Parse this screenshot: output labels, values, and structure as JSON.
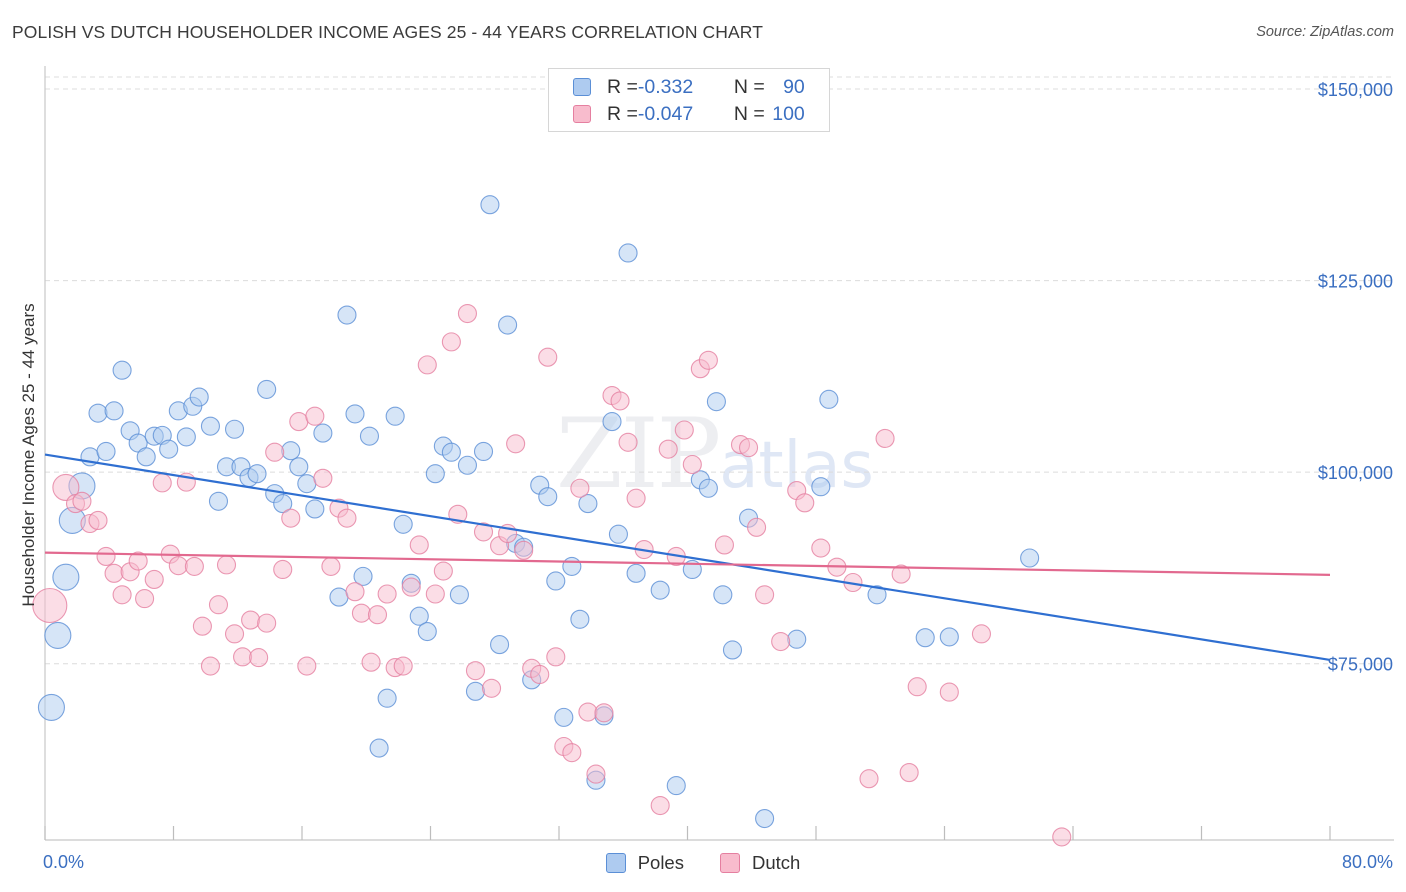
{
  "header": {
    "title": "POLISH VS DUTCH HOUSEHOLDER INCOME AGES 25 - 44 YEARS CORRELATION CHART",
    "source": "Source: ZipAtlas.com"
  },
  "legend": {
    "rows": [
      {
        "r_label": "R = ",
        "r_value": "-0.332",
        "n_label": "N = ",
        "n_value": "90"
      },
      {
        "r_label": "R = ",
        "r_value": "-0.047",
        "n_label": "N = ",
        "n_value": "100"
      }
    ]
  },
  "watermark": {
    "zip": "ZIP",
    "atlas": "atlas"
  },
  "colors": {
    "poles_fill": "#aecbf0",
    "poles_stroke": "#5b8fd6",
    "poles_line": "#2f6fd1",
    "dutch_fill": "#f8bccd",
    "dutch_stroke": "#e57fa0",
    "dutch_line": "#e2698f",
    "axis_label": "#3b6fc1",
    "grid": "#dcdcdc"
  },
  "chart_data": {
    "type": "scatter",
    "title": "POLISH VS DUTCH HOUSEHOLDER INCOME AGES 25 - 44 YEARS CORRELATION CHART",
    "xlabel": "",
    "ylabel": "Householder Income Ages 25 - 44 years",
    "xlim": [
      0,
      80
    ],
    "ylim": [
      52000,
      153000
    ],
    "x_tick_labels": [
      "0.0%",
      "80.0%"
    ],
    "y_ticks": [
      75000,
      100000,
      125000,
      150000
    ],
    "y_tick_labels": [
      "$75,000",
      "$100,000",
      "$125,000",
      "$150,000"
    ],
    "grid": true,
    "legend_position": "top-center",
    "series": [
      {
        "name": "Poles",
        "trend": {
          "x": [
            0,
            80
          ],
          "y": [
            102300,
            75500
          ]
        },
        "points": [
          [
            0.4,
            69300,
            "l"
          ],
          [
            0.8,
            78700,
            "l"
          ],
          [
            1.3,
            86300,
            "l"
          ],
          [
            1.7,
            93700,
            "l"
          ],
          [
            2.3,
            98200,
            "l"
          ],
          [
            2.8,
            102000
          ],
          [
            3.3,
            107700
          ],
          [
            3.8,
            102700
          ],
          [
            4.3,
            108000
          ],
          [
            4.8,
            113300
          ],
          [
            5.3,
            105400
          ],
          [
            5.8,
            103800
          ],
          [
            6.3,
            102000
          ],
          [
            6.8,
            104700
          ],
          [
            7.3,
            104800
          ],
          [
            7.7,
            103000
          ],
          [
            8.3,
            108000
          ],
          [
            8.8,
            104600
          ],
          [
            9.2,
            108600
          ],
          [
            9.6,
            109800
          ],
          [
            10.3,
            106000
          ],
          [
            10.8,
            96200
          ],
          [
            11.3,
            100700
          ],
          [
            11.8,
            105600
          ],
          [
            12.2,
            100700
          ],
          [
            12.7,
            99300
          ],
          [
            13.2,
            99800
          ],
          [
            13.8,
            110800
          ],
          [
            14.3,
            97200
          ],
          [
            14.8,
            95900
          ],
          [
            15.3,
            102800
          ],
          [
            15.8,
            100700
          ],
          [
            16.3,
            98500
          ],
          [
            16.8,
            95200
          ],
          [
            17.3,
            105100
          ],
          [
            18.3,
            83700
          ],
          [
            18.8,
            120500
          ],
          [
            19.3,
            107600
          ],
          [
            19.8,
            86400
          ],
          [
            20.2,
            104700
          ],
          [
            20.8,
            64000
          ],
          [
            21.3,
            70500
          ],
          [
            21.8,
            107300
          ],
          [
            22.3,
            93200
          ],
          [
            22.8,
            85500
          ],
          [
            23.3,
            81200
          ],
          [
            23.8,
            79200
          ],
          [
            24.3,
            99800
          ],
          [
            24.8,
            103400
          ],
          [
            25.3,
            102600
          ],
          [
            25.8,
            84000
          ],
          [
            26.3,
            100900
          ],
          [
            26.8,
            71400
          ],
          [
            27.3,
            102700
          ],
          [
            27.7,
            134900
          ],
          [
            28.3,
            77500
          ],
          [
            28.8,
            119200
          ],
          [
            29.3,
            90700
          ],
          [
            29.8,
            90200
          ],
          [
            30.3,
            72900
          ],
          [
            30.8,
            98300
          ],
          [
            31.3,
            96800
          ],
          [
            31.8,
            85800
          ],
          [
            32.3,
            68000
          ],
          [
            32.8,
            87700
          ],
          [
            33.3,
            80800
          ],
          [
            33.8,
            95900
          ],
          [
            34.3,
            59800
          ],
          [
            34.8,
            68200
          ],
          [
            35.3,
            106600
          ],
          [
            35.7,
            91900
          ],
          [
            36.3,
            128600
          ],
          [
            36.8,
            86800
          ],
          [
            38.3,
            84600
          ],
          [
            39.3,
            59100
          ],
          [
            40.3,
            87300
          ],
          [
            40.8,
            99000
          ],
          [
            41.3,
            97900
          ],
          [
            41.8,
            109200
          ],
          [
            42.2,
            84000
          ],
          [
            42.8,
            76800
          ],
          [
            43.8,
            94000
          ],
          [
            44.8,
            54800
          ],
          [
            48.3,
            98100
          ],
          [
            48.8,
            109500
          ],
          [
            51.8,
            84000
          ],
          [
            54.8,
            78400
          ],
          [
            56.3,
            78500
          ],
          [
            61.3,
            88800
          ],
          [
            46.8,
            78200
          ]
        ]
      },
      {
        "name": "Dutch",
        "trend": {
          "x": [
            0,
            80
          ],
          "y": [
            89500,
            86600
          ]
        },
        "points": [
          [
            0.3,
            82600,
            "xl"
          ],
          [
            1.3,
            98000,
            "l"
          ],
          [
            1.9,
            95900
          ],
          [
            2.3,
            96200
          ],
          [
            2.8,
            93300
          ],
          [
            3.3,
            93700
          ],
          [
            3.8,
            89000
          ],
          [
            4.3,
            86800
          ],
          [
            4.8,
            84000
          ],
          [
            5.3,
            87000
          ],
          [
            5.8,
            88400
          ],
          [
            6.2,
            83500
          ],
          [
            6.8,
            86000
          ],
          [
            7.3,
            98600
          ],
          [
            7.8,
            89300
          ],
          [
            8.3,
            87800
          ],
          [
            8.8,
            98700
          ],
          [
            9.3,
            87700
          ],
          [
            9.8,
            79900
          ],
          [
            10.3,
            74700
          ],
          [
            10.8,
            82700
          ],
          [
            11.3,
            87900
          ],
          [
            11.8,
            78900
          ],
          [
            12.3,
            75900
          ],
          [
            12.8,
            80700
          ],
          [
            13.3,
            75800
          ],
          [
            13.8,
            80300
          ],
          [
            14.3,
            102600
          ],
          [
            14.8,
            87300
          ],
          [
            15.3,
            94000
          ],
          [
            15.8,
            106600
          ],
          [
            16.3,
            74700
          ],
          [
            16.8,
            107300
          ],
          [
            17.3,
            99200
          ],
          [
            17.8,
            87700
          ],
          [
            18.3,
            95300
          ],
          [
            18.8,
            94000
          ],
          [
            19.3,
            84400
          ],
          [
            19.7,
            81600
          ],
          [
            20.3,
            75200
          ],
          [
            20.7,
            81400
          ],
          [
            21.3,
            84100
          ],
          [
            21.8,
            74500
          ],
          [
            22.3,
            74700
          ],
          [
            22.8,
            85000
          ],
          [
            23.3,
            90500
          ],
          [
            23.8,
            114000
          ],
          [
            24.3,
            84100
          ],
          [
            24.8,
            87100
          ],
          [
            25.3,
            117000
          ],
          [
            25.7,
            94500
          ],
          [
            26.3,
            120700
          ],
          [
            26.8,
            74100
          ],
          [
            27.3,
            92200
          ],
          [
            27.8,
            71800
          ],
          [
            28.3,
            90400
          ],
          [
            28.8,
            92000
          ],
          [
            29.3,
            103700
          ],
          [
            29.8,
            89800
          ],
          [
            30.3,
            74400
          ],
          [
            30.8,
            73600
          ],
          [
            31.3,
            115000
          ],
          [
            31.8,
            75900
          ],
          [
            32.3,
            64200
          ],
          [
            32.8,
            63400
          ],
          [
            33.3,
            97900
          ],
          [
            33.8,
            68700
          ],
          [
            34.3,
            60600
          ],
          [
            34.8,
            68600
          ],
          [
            35.3,
            110000
          ],
          [
            35.8,
            109300
          ],
          [
            36.3,
            103900
          ],
          [
            36.8,
            96600
          ],
          [
            37.3,
            89900
          ],
          [
            38.3,
            56500
          ],
          [
            38.8,
            103000
          ],
          [
            39.3,
            89000
          ],
          [
            39.8,
            105500
          ],
          [
            40.3,
            101000
          ],
          [
            40.8,
            113500
          ],
          [
            41.3,
            114600
          ],
          [
            42.3,
            90500
          ],
          [
            43.3,
            103600
          ],
          [
            43.8,
            103200
          ],
          [
            44.3,
            92800
          ],
          [
            44.8,
            84000
          ],
          [
            45.8,
            77900
          ],
          [
            46.8,
            97600
          ],
          [
            47.3,
            96000
          ],
          [
            48.3,
            90100
          ],
          [
            49.3,
            87600
          ],
          [
            50.3,
            85600
          ],
          [
            51.3,
            60000
          ],
          [
            52.3,
            104400
          ],
          [
            53.3,
            86700
          ],
          [
            53.8,
            60800
          ],
          [
            54.3,
            72000
          ],
          [
            56.3,
            71300
          ],
          [
            58.3,
            78900
          ],
          [
            63.3,
            52400
          ]
        ]
      }
    ]
  }
}
